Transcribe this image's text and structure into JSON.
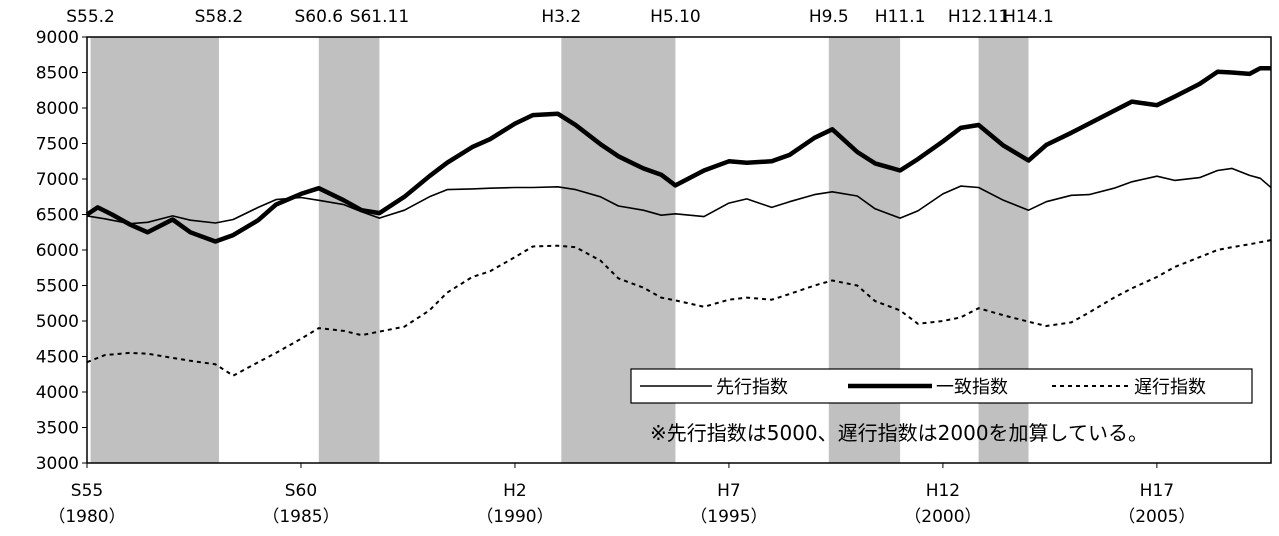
{
  "chart_data": {
    "type": "line",
    "x_range": [
      "1980-01",
      "2007-09"
    ],
    "ylim": [
      3000,
      9000
    ],
    "yticks": [
      "9000",
      "8500",
      "8000",
      "7500",
      "7000",
      "6500",
      "6000",
      "5500",
      "5000",
      "4500",
      "4000",
      "3500",
      "3000"
    ],
    "x_tick_labels": [
      {
        "era": "S55",
        "year": "（1980）"
      },
      {
        "era": "S60",
        "year": "（1985）"
      },
      {
        "era": "H2",
        "year": "（1990）"
      },
      {
        "era": "H7",
        "year": "（1995）"
      },
      {
        "era": "H12",
        "year": "（2000）"
      },
      {
        "era": "H17",
        "year": "（2005）"
      }
    ],
    "recessions": [
      {
        "start_label": "S55.2",
        "end_label": "S58.2",
        "start": "1980-02",
        "end": "1983-02"
      },
      {
        "start_label": "S60.6",
        "end_label": "S61.11",
        "start": "1985-06",
        "end": "1986-11"
      },
      {
        "start_label": "H3.2",
        "end_label": "H5.10",
        "start": "1991-02",
        "end": "1993-10"
      },
      {
        "start_label": "H9.5",
        "end_label": "H11.1",
        "start": "1997-05",
        "end": "1999-01"
      },
      {
        "start_label": "H12.11",
        "end_label": "H14.1",
        "start": "2000-11",
        "end": "2002-01"
      }
    ],
    "series": [
      {
        "name": "先行指数",
        "style": "thin",
        "points": [
          [
            "1980-01",
            6480
          ],
          [
            "1980-06",
            6440
          ],
          [
            "1981-01",
            6370
          ],
          [
            "1981-06",
            6390
          ],
          [
            "1982-01",
            6480
          ],
          [
            "1982-06",
            6420
          ],
          [
            "1983-01",
            6380
          ],
          [
            "1983-06",
            6430
          ],
          [
            "1984-01",
            6600
          ],
          [
            "1984-06",
            6710
          ],
          [
            "1985-01",
            6740
          ],
          [
            "1985-06",
            6700
          ],
          [
            "1986-01",
            6640
          ],
          [
            "1986-06",
            6540
          ],
          [
            "1986-11",
            6450
          ],
          [
            "1987-06",
            6560
          ],
          [
            "1988-01",
            6750
          ],
          [
            "1988-06",
            6850
          ],
          [
            "1989-01",
            6860
          ],
          [
            "1989-06",
            6870
          ],
          [
            "1990-01",
            6880
          ],
          [
            "1990-06",
            6880
          ],
          [
            "1991-01",
            6890
          ],
          [
            "1991-06",
            6850
          ],
          [
            "1992-01",
            6750
          ],
          [
            "1992-06",
            6620
          ],
          [
            "1993-01",
            6560
          ],
          [
            "1993-06",
            6490
          ],
          [
            "1993-10",
            6510
          ],
          [
            "1994-06",
            6470
          ],
          [
            "1995-01",
            6660
          ],
          [
            "1995-06",
            6720
          ],
          [
            "1996-01",
            6600
          ],
          [
            "1996-06",
            6680
          ],
          [
            "1997-01",
            6780
          ],
          [
            "1997-06",
            6820
          ],
          [
            "1998-01",
            6760
          ],
          [
            "1998-06",
            6580
          ],
          [
            "1999-01",
            6450
          ],
          [
            "1999-06",
            6550
          ],
          [
            "2000-01",
            6790
          ],
          [
            "2000-06",
            6900
          ],
          [
            "2000-11",
            6880
          ],
          [
            "2001-06",
            6700
          ],
          [
            "2002-01",
            6560
          ],
          [
            "2002-06",
            6680
          ],
          [
            "2003-01",
            6770
          ],
          [
            "2003-06",
            6780
          ],
          [
            "2004-01",
            6870
          ],
          [
            "2004-06",
            6960
          ],
          [
            "2005-01",
            7040
          ],
          [
            "2005-06",
            6980
          ],
          [
            "2006-01",
            7020
          ],
          [
            "2006-06",
            7120
          ],
          [
            "2006-10",
            7150
          ],
          [
            "2007-03",
            7050
          ],
          [
            "2007-06",
            7010
          ],
          [
            "2007-09",
            6880
          ]
        ]
      },
      {
        "name": "一致指数",
        "style": "thick",
        "points": [
          [
            "1980-01",
            6500
          ],
          [
            "1980-04",
            6600
          ],
          [
            "1980-08",
            6500
          ],
          [
            "1981-01",
            6360
          ],
          [
            "1981-06",
            6250
          ],
          [
            "1982-01",
            6430
          ],
          [
            "1982-06",
            6250
          ],
          [
            "1983-01",
            6120
          ],
          [
            "1983-06",
            6210
          ],
          [
            "1984-01",
            6420
          ],
          [
            "1984-06",
            6640
          ],
          [
            "1985-01",
            6790
          ],
          [
            "1985-06",
            6870
          ],
          [
            "1986-01",
            6700
          ],
          [
            "1986-06",
            6560
          ],
          [
            "1986-11",
            6520
          ],
          [
            "1987-06",
            6750
          ],
          [
            "1988-01",
            7040
          ],
          [
            "1988-06",
            7230
          ],
          [
            "1989-01",
            7450
          ],
          [
            "1989-06",
            7560
          ],
          [
            "1990-01",
            7780
          ],
          [
            "1990-06",
            7900
          ],
          [
            "1991-01",
            7920
          ],
          [
            "1991-06",
            7760
          ],
          [
            "1992-01",
            7490
          ],
          [
            "1992-06",
            7320
          ],
          [
            "1993-01",
            7150
          ],
          [
            "1993-06",
            7060
          ],
          [
            "1993-10",
            6910
          ],
          [
            "1994-06",
            7120
          ],
          [
            "1995-01",
            7250
          ],
          [
            "1995-06",
            7230
          ],
          [
            "1996-01",
            7250
          ],
          [
            "1996-06",
            7340
          ],
          [
            "1997-01",
            7580
          ],
          [
            "1997-06",
            7700
          ],
          [
            "1998-01",
            7380
          ],
          [
            "1998-06",
            7220
          ],
          [
            "1999-01",
            7120
          ],
          [
            "1999-06",
            7280
          ],
          [
            "2000-01",
            7530
          ],
          [
            "2000-06",
            7720
          ],
          [
            "2000-11",
            7760
          ],
          [
            "2001-06",
            7470
          ],
          [
            "2002-01",
            7260
          ],
          [
            "2002-06",
            7480
          ],
          [
            "2003-01",
            7650
          ],
          [
            "2003-06",
            7780
          ],
          [
            "2004-01",
            7960
          ],
          [
            "2004-06",
            8090
          ],
          [
            "2005-01",
            8040
          ],
          [
            "2005-06",
            8160
          ],
          [
            "2006-01",
            8340
          ],
          [
            "2006-06",
            8510
          ],
          [
            "2006-10",
            8500
          ],
          [
            "2007-03",
            8480
          ],
          [
            "2007-06",
            8560
          ],
          [
            "2007-09",
            8560
          ]
        ]
      },
      {
        "name": "遅行指数",
        "style": "dotted",
        "points": [
          [
            "1980-01",
            4420
          ],
          [
            "1980-06",
            4520
          ],
          [
            "1981-01",
            4550
          ],
          [
            "1981-06",
            4540
          ],
          [
            "1982-01",
            4480
          ],
          [
            "1982-06",
            4440
          ],
          [
            "1983-01",
            4390
          ],
          [
            "1983-06",
            4230
          ],
          [
            "1984-01",
            4420
          ],
          [
            "1984-06",
            4550
          ],
          [
            "1985-01",
            4750
          ],
          [
            "1985-06",
            4900
          ],
          [
            "1986-01",
            4860
          ],
          [
            "1986-06",
            4800
          ],
          [
            "1986-11",
            4850
          ],
          [
            "1987-06",
            4920
          ],
          [
            "1988-01",
            5150
          ],
          [
            "1988-06",
            5400
          ],
          [
            "1989-01",
            5620
          ],
          [
            "1989-06",
            5700
          ],
          [
            "1990-01",
            5900
          ],
          [
            "1990-06",
            6050
          ],
          [
            "1991-01",
            6060
          ],
          [
            "1991-06",
            6040
          ],
          [
            "1992-01",
            5850
          ],
          [
            "1992-06",
            5600
          ],
          [
            "1993-01",
            5470
          ],
          [
            "1993-06",
            5330
          ],
          [
            "1993-10",
            5290
          ],
          [
            "1994-06",
            5200
          ],
          [
            "1995-01",
            5300
          ],
          [
            "1995-06",
            5330
          ],
          [
            "1996-01",
            5300
          ],
          [
            "1996-06",
            5380
          ],
          [
            "1997-01",
            5500
          ],
          [
            "1997-06",
            5570
          ],
          [
            "1998-01",
            5500
          ],
          [
            "1998-06",
            5280
          ],
          [
            "1999-01",
            5150
          ],
          [
            "1999-06",
            4960
          ],
          [
            "2000-01",
            5000
          ],
          [
            "2000-06",
            5050
          ],
          [
            "2000-11",
            5180
          ],
          [
            "2001-06",
            5080
          ],
          [
            "2002-01",
            4990
          ],
          [
            "2002-06",
            4930
          ],
          [
            "2003-01",
            4980
          ],
          [
            "2003-06",
            5120
          ],
          [
            "2004-01",
            5330
          ],
          [
            "2004-06",
            5460
          ],
          [
            "2005-01",
            5620
          ],
          [
            "2005-06",
            5760
          ],
          [
            "2006-01",
            5900
          ],
          [
            "2006-06",
            6000
          ],
          [
            "2006-10",
            6040
          ],
          [
            "2007-03",
            6080
          ],
          [
            "2007-06",
            6110
          ],
          [
            "2007-09",
            6140
          ]
        ]
      }
    ],
    "note": "※先行指数は5000、遅行指数は2000を加算している。",
    "colors": {
      "recession_band": "#c0c0c0",
      "line": "#000000",
      "background": "#ffffff"
    }
  }
}
